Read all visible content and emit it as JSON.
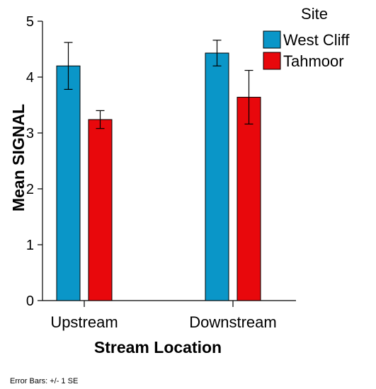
{
  "chart_data": {
    "type": "bar",
    "categories": [
      "Upstream",
      "Downstream"
    ],
    "series": [
      {
        "name": "West Cliff",
        "color": "#0a96c8",
        "values": [
          4.2,
          4.43
        ],
        "se": [
          0.42,
          0.23
        ]
      },
      {
        "name": "Tahmoor",
        "color": "#e8080c",
        "values": [
          3.24,
          3.64
        ],
        "se": [
          0.16,
          0.48
        ]
      }
    ],
    "xlabel": "Stream Location",
    "ylabel": "Mean SIGNAL",
    "ylim": [
      0,
      5
    ],
    "yticks": [
      0,
      1,
      2,
      3,
      4,
      5
    ],
    "legend": {
      "title": "Site",
      "position": "top-right"
    },
    "grid": false,
    "footnote": "Error Bars: +/- 1 SE"
  }
}
